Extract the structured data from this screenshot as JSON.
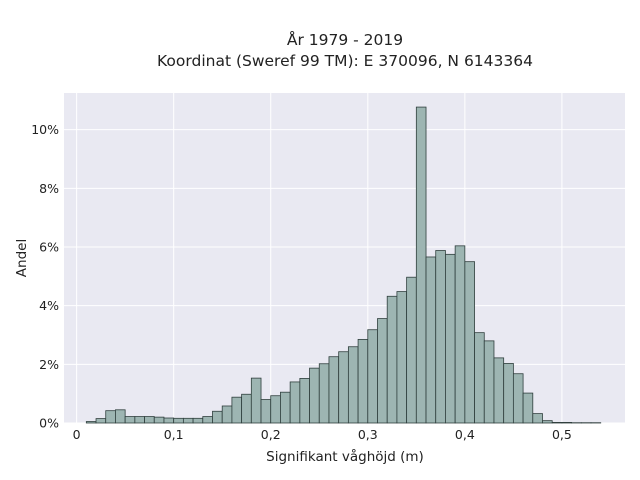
{
  "chart_data": {
    "type": "bar",
    "title_lines": [
      "År 1979 - 2019",
      "Koordinat (Sweref 99 TM): E 370096, N 6143364"
    ],
    "xlabel": "Signifikant våghöjd (m)",
    "ylabel": "Andel",
    "xlim": [
      -0.013,
      0.565
    ],
    "ylim": [
      0,
      0.1125
    ],
    "x_ticks": [
      0,
      0.1,
      0.2,
      0.3,
      0.4,
      0.5
    ],
    "x_tick_labels": [
      "0",
      "0,1",
      "0,2",
      "0,3",
      "0,4",
      "0,5"
    ],
    "y_ticks": [
      0,
      0.02,
      0.04,
      0.06,
      0.08,
      0.1
    ],
    "y_tick_labels": [
      "0%",
      "2%",
      "4%",
      "6%",
      "8%",
      "10%"
    ],
    "grid": true,
    "bin_width": 0.01,
    "bin_starts": [
      0.01,
      0.02,
      0.03,
      0.04,
      0.05,
      0.06,
      0.07,
      0.08,
      0.09,
      0.1,
      0.11,
      0.12,
      0.13,
      0.14,
      0.15,
      0.16,
      0.17,
      0.18,
      0.19,
      0.2,
      0.21,
      0.22,
      0.23,
      0.24,
      0.25,
      0.26,
      0.27,
      0.28,
      0.29,
      0.3,
      0.31,
      0.32,
      0.33,
      0.34,
      0.35,
      0.36,
      0.37,
      0.38,
      0.39,
      0.4,
      0.41,
      0.42,
      0.43,
      0.44,
      0.45,
      0.46,
      0.47,
      0.48,
      0.49,
      0.5,
      0.51,
      0.52,
      0.53
    ],
    "values": [
      0.0005,
      0.0015,
      0.0042,
      0.0045,
      0.0022,
      0.0022,
      0.0022,
      0.002,
      0.0017,
      0.0016,
      0.0016,
      0.0016,
      0.0022,
      0.004,
      0.0058,
      0.0088,
      0.0098,
      0.0153,
      0.008,
      0.0093,
      0.0105,
      0.014,
      0.0152,
      0.0187,
      0.0202,
      0.0226,
      0.0243,
      0.026,
      0.0285,
      0.0318,
      0.0356,
      0.0432,
      0.0448,
      0.0497,
      0.1077,
      0.0566,
      0.0588,
      0.0575,
      0.0604,
      0.055,
      0.0308,
      0.028,
      0.0222,
      0.0203,
      0.0168,
      0.0102,
      0.0032,
      0.0008,
      0.0002,
      0.0002,
      0.0001,
      0.0001,
      0.0001
    ],
    "colors": {
      "bar_fill": "#9db5b2",
      "bar_stroke": "#2f3f3d",
      "plot_bg": "#e9e9f2",
      "grid": "#ffffff"
    }
  }
}
